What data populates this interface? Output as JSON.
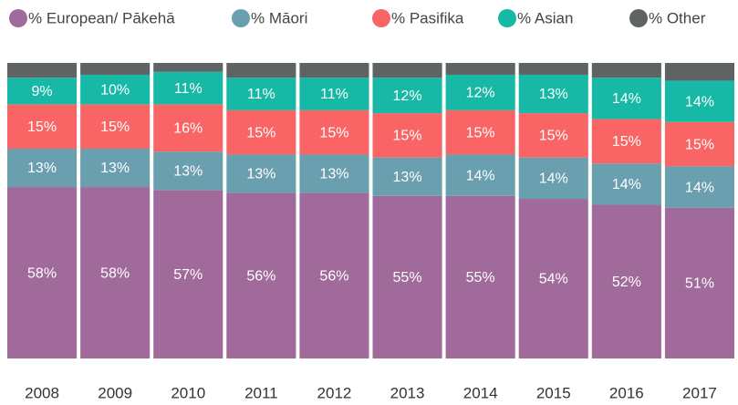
{
  "chart_data": {
    "type": "stacked_bar",
    "categories": [
      "2008",
      "2009",
      "2010",
      "2011",
      "2012",
      "2013",
      "2014",
      "2015",
      "2016",
      "2017"
    ],
    "ylim": [
      0,
      100
    ],
    "legend": "top",
    "series": [
      {
        "name": "% European/ Pākehā",
        "color": "#a06a9a",
        "values": [
          58,
          58,
          57,
          56,
          56,
          55,
          55,
          54,
          52,
          51
        ],
        "value_labels": [
          "58%",
          "58%",
          "57%",
          "56%",
          "56%",
          "55%",
          "55%",
          "54%",
          "52%",
          "51%"
        ]
      },
      {
        "name": "% Māori",
        "color": "#6a9fb0",
        "values": [
          13,
          13,
          13,
          13,
          13,
          13,
          14,
          14,
          14,
          14
        ],
        "value_labels": [
          "13%",
          "13%",
          "13%",
          "13%",
          "13%",
          "13%",
          "14%",
          "14%",
          "14%",
          "14%"
        ]
      },
      {
        "name": "% Pasifika",
        "color": "#f96565",
        "values": [
          15,
          15,
          16,
          15,
          15,
          15,
          15,
          15,
          15,
          15
        ],
        "value_labels": [
          "15%",
          "15%",
          "16%",
          "15%",
          "15%",
          "15%",
          "15%",
          "15%",
          "15%",
          "15%"
        ]
      },
      {
        "name": "% Asian",
        "color": "#17b9a6",
        "values": [
          9,
          10,
          11,
          11,
          11,
          12,
          12,
          13,
          14,
          14
        ],
        "value_labels": [
          "9%",
          "10%",
          "11%",
          "11%",
          "11%",
          "12%",
          "12%",
          "13%",
          "14%",
          "14%"
        ]
      },
      {
        "name": "% Other",
        "color": "#5f6364",
        "values": [
          5,
          4,
          3,
          5,
          5,
          5,
          4,
          4,
          5,
          6
        ]
      }
    ]
  }
}
